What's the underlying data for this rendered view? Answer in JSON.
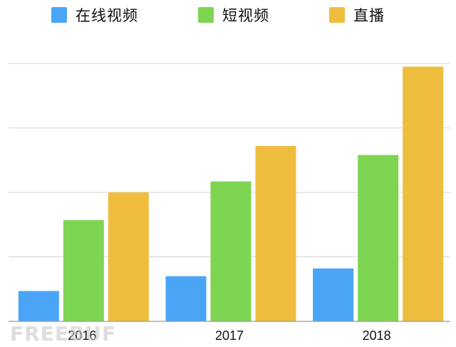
{
  "chart_data": {
    "type": "bar",
    "title": "",
    "xlabel": "",
    "ylabel": "",
    "categories": [
      "2016",
      "2017",
      "2018"
    ],
    "series": [
      {
        "name": "在线视频",
        "values": [
          0.47,
          0.7,
          0.82
        ],
        "color": "#4aa5f7"
      },
      {
        "name": "短视频",
        "values": [
          1.57,
          2.17,
          2.58
        ],
        "color": "#7ed552"
      },
      {
        "name": "直播",
        "values": [
          2.0,
          2.72,
          3.95
        ],
        "color": "#efbd3e"
      }
    ],
    "ylim": [
      0,
      4
    ],
    "grid": true,
    "legend_position": "top",
    "y_tick_labels_visible": false
  },
  "watermark": {
    "text": "FREEBUF"
  }
}
